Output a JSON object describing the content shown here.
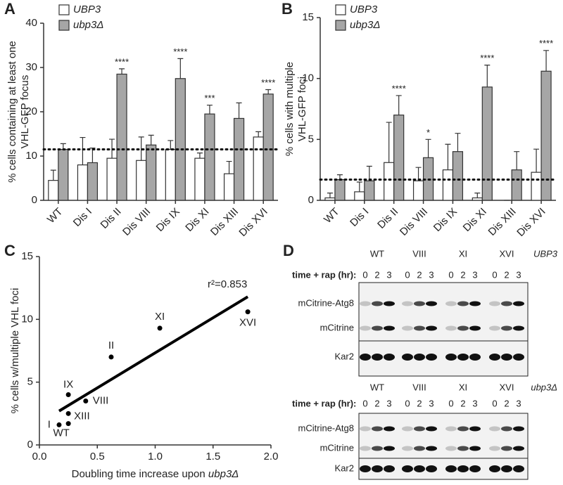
{
  "chart_data": [
    {
      "type": "bar",
      "panel": "A",
      "ylabel": [
        "% cells containing at least one",
        "VHL-GFP focus"
      ],
      "categories": [
        "WT",
        "Dis I",
        "Dis II",
        "Dis VIII",
        "Dis IX",
        "Dis XI",
        "Dis XIII",
        "Dis XVI"
      ],
      "series": [
        {
          "name": "UBP3",
          "color": "#ffffff",
          "values": [
            4.5,
            8,
            9.5,
            9,
            11.5,
            9.5,
            6,
            14.3
          ],
          "errors": [
            2.3,
            6.2,
            4.3,
            5.3,
            2,
            1.2,
            2.8,
            1.2
          ]
        },
        {
          "name": "ubp3Δ",
          "color": "#a6a6a6",
          "values": [
            11.5,
            8.5,
            28.5,
            12.5,
            27.5,
            19.5,
            18.5,
            24
          ],
          "errors": [
            1.3,
            3.3,
            1.2,
            2.2,
            4.5,
            2,
            3.5,
            1
          ]
        }
      ],
      "annotations": [
        {
          "category": "Dis II",
          "label": "****"
        },
        {
          "category": "Dis IX",
          "label": "****"
        },
        {
          "category": "Dis XI",
          "label": "***"
        },
        {
          "category": "Dis XVI",
          "label": "****"
        }
      ],
      "reference_line": 11.5,
      "ylim": [
        0,
        40
      ],
      "yticks": [
        0,
        10,
        20,
        30,
        40
      ],
      "legend": "top-left"
    },
    {
      "type": "bar",
      "panel": "B",
      "ylabel": [
        "% cells with multiple",
        "VHL-GFP foci"
      ],
      "categories": [
        "WT",
        "Dis I",
        "Dis II",
        "Dis VIII",
        "Dis IX",
        "Dis XI",
        "Dis XIII",
        "Dis XVI"
      ],
      "series": [
        {
          "name": "UBP3",
          "color": "#ffffff",
          "values": [
            0.2,
            0.7,
            3.1,
            1.6,
            2.5,
            0.2,
            0,
            2.3
          ],
          "errors": [
            0.4,
            0.8,
            3.3,
            1.1,
            2.1,
            0.4,
            0,
            1.9
          ]
        },
        {
          "name": "ubp3Δ",
          "color": "#a6a6a6",
          "values": [
            1.7,
            1.6,
            7.0,
            3.5,
            4.0,
            9.3,
            2.5,
            10.6
          ],
          "errors": [
            0.4,
            1.2,
            1.6,
            1.5,
            1.5,
            1.8,
            1.5,
            1.7
          ]
        }
      ],
      "annotations": [
        {
          "category": "Dis II",
          "label": "****"
        },
        {
          "category": "Dis VIII",
          "label": "*"
        },
        {
          "category": "Dis XI",
          "label": "****"
        },
        {
          "category": "Dis XVI",
          "label": "****"
        }
      ],
      "reference_line": 1.7,
      "ylim": [
        0,
        15
      ],
      "yticks": [
        0,
        5,
        10,
        15
      ],
      "legend": "top-left"
    },
    {
      "type": "scatter",
      "panel": "C",
      "ylabel": [
        "% cells w/multiple VHL foci"
      ],
      "xlabel": [
        "Doubling time increase upon ",
        "ubp3Δ"
      ],
      "labels": [
        "I",
        "WT",
        "XIII",
        "IX",
        "VIII",
        "II",
        "XI",
        "XVI"
      ],
      "x": [
        0.17,
        0.25,
        0.25,
        0.25,
        0.4,
        0.62,
        1.04,
        1.8
      ],
      "values": [
        1.6,
        1.7,
        2.5,
        4.0,
        3.5,
        7.0,
        9.3,
        10.6
      ],
      "color": "#000000",
      "fit_line": {
        "x": [
          0.17,
          1.8
        ],
        "y": [
          2.7,
          11.8
        ]
      },
      "fit_label": "r²=0.853",
      "xlim": [
        0,
        2
      ],
      "xticks": [
        {
          "value": 0,
          "label": "0.0"
        },
        {
          "value": 0.5,
          "label": "0.5"
        },
        {
          "value": 1,
          "label": "1.0"
        },
        {
          "value": 1.5,
          "label": "1.5"
        },
        {
          "value": 2,
          "label": "2.0"
        }
      ],
      "ylim": [
        0,
        15
      ],
      "yticks": [
        0,
        5,
        10,
        15
      ]
    }
  ],
  "blot": {
    "panel": "D",
    "time_label": "time + rap (hr):",
    "times": [
      0,
      2,
      3
    ],
    "lanes": [
      "WT",
      "VIII",
      "XI",
      "XVI"
    ],
    "rows": [
      "mCitrine-Atg8",
      "mCitrine",
      "Kar2"
    ],
    "strains": [
      "UBP3",
      "ubp3Δ"
    ]
  }
}
